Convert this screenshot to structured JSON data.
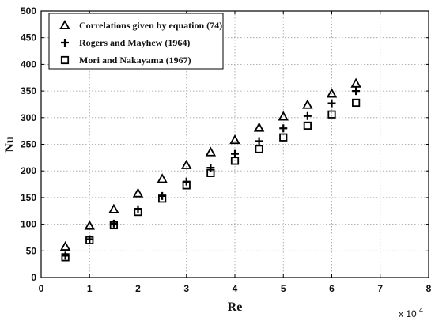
{
  "chart_data": {
    "type": "scatter",
    "xlabel": "Re",
    "ylabel": "Nu",
    "x_multiplier": {
      "base": "x 10",
      "exponent": "4"
    },
    "xlim": [
      0,
      8
    ],
    "ylim": [
      0,
      500
    ],
    "xticks": [
      "0",
      "1",
      "2",
      "3",
      "4",
      "5",
      "6",
      "7",
      "8"
    ],
    "yticks": [
      "0",
      "50",
      "100",
      "150",
      "200",
      "250",
      "300",
      "350",
      "400",
      "450",
      "500"
    ],
    "grid": "dotted",
    "legend_position": "top-left",
    "series": [
      {
        "name": "Correlations  given by equation (74)",
        "marker": "triangle",
        "x": [
          0.5,
          1,
          1.5,
          2,
          2.5,
          3,
          3.5,
          4,
          4.5,
          5,
          5.5,
          6,
          6.5
        ],
        "values": [
          58,
          97,
          128,
          158,
          185,
          211,
          235,
          258,
          281,
          302,
          324,
          345,
          364
        ]
      },
      {
        "name": "Rogers and Mayhew (1964)",
        "marker": "plus",
        "x": [
          0.5,
          1,
          1.5,
          2,
          2.5,
          3,
          3.5,
          4,
          4.5,
          5,
          5.5,
          6,
          6.5
        ],
        "values": [
          41,
          72,
          101,
          128,
          153,
          180,
          206,
          232,
          256,
          280,
          303,
          327,
          350
        ]
      },
      {
        "name": "Mori and Nakayama (1967)",
        "marker": "square",
        "x": [
          0.5,
          1,
          1.5,
          2,
          2.5,
          3,
          3.5,
          4,
          4.5,
          5,
          5.5,
          6,
          6.5
        ],
        "values": [
          38,
          70,
          98,
          123,
          148,
          173,
          196,
          219,
          241,
          263,
          285,
          306,
          328
        ]
      }
    ]
  }
}
